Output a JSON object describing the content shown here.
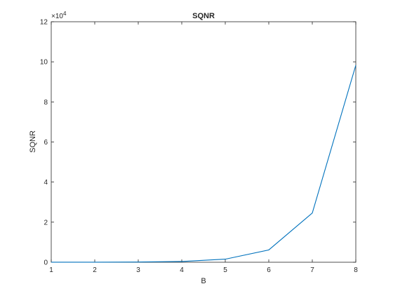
{
  "chart_data": {
    "type": "line",
    "title": "SQNR",
    "xlabel": "B",
    "ylabel": "SQNR",
    "xlim": [
      1,
      8
    ],
    "ylim": [
      0,
      120000
    ],
    "x_ticks": [
      1,
      2,
      3,
      4,
      5,
      6,
      7,
      8
    ],
    "y_ticks": [
      0,
      20000,
      40000,
      60000,
      80000,
      100000,
      120000
    ],
    "y_tick_labels": [
      "0",
      "2",
      "4",
      "6",
      "8",
      "10",
      "12"
    ],
    "y_exponent_label": "×10",
    "y_exponent_power": "4",
    "grid": false,
    "series": [
      {
        "color": "#0072BD",
        "x": [
          1,
          2,
          3,
          4,
          5,
          6,
          7,
          8
        ],
        "y": [
          6,
          24,
          96,
          384,
          1536,
          6144,
          24576,
          98304
        ]
      }
    ]
  }
}
